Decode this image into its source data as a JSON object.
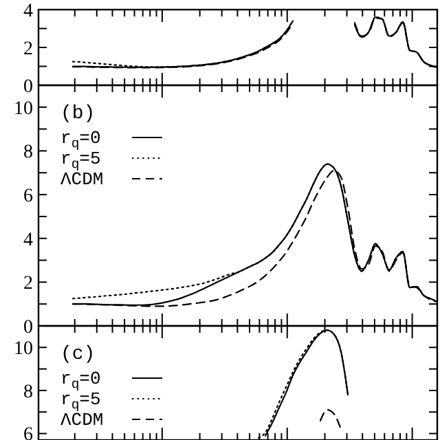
{
  "chart_data": [
    {
      "type": "line",
      "categories": [
        null,
        null,
        null,
        null,
        null,
        null,
        null,
        null,
        null,
        null,
        null,
        null,
        null,
        null,
        null,
        null,
        null,
        null,
        null,
        null,
        null,
        null,
        null,
        null,
        null,
        null,
        null,
        null,
        null,
        null,
        null,
        null,
        null,
        null,
        null,
        null,
        null,
        null,
        null,
        null,
        null,
        null,
        null,
        null,
        null,
        null,
        null,
        null,
        null,
        null,
        null,
        null,
        null,
        null,
        null,
        null,
        null,
        null,
        null
      ],
      "series": [
        {
          "color": "#000000",
          "line_style": "solid",
          "values": [
            null,
            null,
            null,
            null,
            null,
            1.0,
            1.0,
            0.99,
            0.98,
            0.97,
            0.97,
            0.96,
            0.96,
            0.95,
            0.95,
            0.95,
            0.95,
            0.96,
            0.96,
            0.97,
            0.98,
            1.0,
            1.02,
            1.05,
            1.08,
            1.12,
            1.17,
            1.24,
            1.32,
            1.42,
            1.53,
            1.65,
            1.8,
            2.0,
            2.2,
            2.45,
            2.85,
            3.4,
            null,
            null,
            null,
            null,
            null,
            null,
            null,
            null,
            null,
            null,
            null,
            null,
            null,
            null,
            null,
            null,
            null,
            null,
            null,
            null,
            null
          ]
        },
        {
          "color": "#000000",
          "line_style": "dotted",
          "values": [
            null,
            null,
            null,
            null,
            null,
            1.25,
            1.23,
            1.2,
            1.17,
            1.14,
            1.11,
            1.08,
            1.05,
            1.02,
            1.0,
            0.98,
            0.97,
            0.96,
            0.96,
            0.97,
            0.98,
            1.0,
            1.02,
            1.05,
            1.08,
            1.12,
            1.17,
            1.24,
            1.32,
            1.42,
            1.53,
            1.65,
            1.8,
            2.0,
            2.2,
            2.45,
            2.85,
            3.4,
            null,
            null,
            null,
            null,
            null,
            null,
            null,
            null,
            null,
            null,
            null,
            null,
            null,
            null,
            null,
            null,
            null,
            null,
            null,
            null,
            null
          ]
        },
        {
          "color": "#000000",
          "line_style": "dashed",
          "values": [
            null,
            null,
            null,
            null,
            null,
            0.98,
            0.98,
            0.97,
            0.96,
            0.95,
            0.95,
            0.94,
            0.94,
            0.93,
            0.93,
            0.93,
            0.93,
            0.93,
            0.94,
            0.95,
            0.96,
            0.97,
            0.99,
            1.02,
            1.05,
            1.09,
            1.14,
            1.2,
            1.28,
            1.37,
            1.48,
            1.6,
            1.74,
            1.92,
            2.12,
            2.37,
            2.75,
            3.3,
            null,
            null,
            null,
            null,
            null,
            null,
            null,
            null,
            null,
            null,
            null,
            null,
            null,
            null,
            null,
            null,
            null,
            null,
            null,
            null,
            null
          ]
        },
        {
          "color": "#000000",
          "line_style": "solid",
          "values": [
            null,
            null,
            null,
            null,
            null,
            null,
            null,
            null,
            null,
            null,
            null,
            null,
            null,
            null,
            null,
            null,
            null,
            null,
            null,
            null,
            null,
            null,
            null,
            null,
            null,
            null,
            null,
            null,
            null,
            null,
            null,
            null,
            null,
            null,
            null,
            null,
            null,
            null,
            null,
            null,
            null,
            null,
            null,
            null,
            null,
            null,
            3.2,
            2.55,
            2.8,
            3.6,
            3.5,
            2.6,
            2.8,
            3.35,
            1.85,
            1.75,
            1.25,
            1.05,
            0.95
          ]
        },
        {
          "color": "#000000",
          "line_style": "dotted",
          "values": [
            null,
            null,
            null,
            null,
            null,
            null,
            null,
            null,
            null,
            null,
            null,
            null,
            null,
            null,
            null,
            null,
            null,
            null,
            null,
            null,
            null,
            null,
            null,
            null,
            null,
            null,
            null,
            null,
            null,
            null,
            null,
            null,
            null,
            null,
            null,
            null,
            null,
            null,
            null,
            null,
            null,
            null,
            null,
            null,
            null,
            null,
            3.2,
            2.55,
            2.8,
            3.6,
            3.5,
            2.6,
            2.8,
            3.35,
            1.85,
            1.75,
            1.25,
            1.05,
            0.95
          ]
        },
        {
          "color": "#000000",
          "line_style": "dashed",
          "values": [
            null,
            null,
            null,
            null,
            null,
            null,
            null,
            null,
            null,
            null,
            null,
            null,
            null,
            null,
            null,
            null,
            null,
            null,
            null,
            null,
            null,
            null,
            null,
            null,
            null,
            null,
            null,
            null,
            null,
            null,
            null,
            null,
            null,
            null,
            null,
            null,
            null,
            null,
            null,
            null,
            null,
            null,
            null,
            null,
            null,
            null,
            3.3,
            2.6,
            2.75,
            3.55,
            3.5,
            2.55,
            2.8,
            3.3,
            1.85,
            1.75,
            1.25,
            1.05,
            0.95
          ]
        }
      ],
      "ylim": [
        0,
        4
      ],
      "yticks": [
        0,
        {
          "value": 1,
          "label": null
        },
        2,
        {
          "value": 3,
          "label": null
        },
        4
      ],
      "tick_labels": "y"
    },
    {
      "type": "line",
      "categories": [
        null,
        null,
        null,
        null,
        null,
        null,
        null,
        null,
        null,
        null,
        null,
        null,
        null,
        null,
        null,
        null,
        null,
        null,
        null,
        null,
        null,
        null,
        null,
        null,
        null,
        null,
        null,
        null,
        null,
        null,
        null,
        null,
        null,
        null,
        null,
        null,
        null,
        null,
        null,
        null,
        null,
        null,
        null,
        null,
        null,
        null,
        null,
        null,
        null,
        null,
        null,
        null,
        null,
        null,
        null,
        null,
        null,
        null,
        null
      ],
      "series": [
        {
          "name": "r$_{q}$=0",
          "color": "#000000",
          "line_style": "solid",
          "values": [
            null,
            null,
            null,
            null,
            null,
            1.0,
            1.0,
            1.0,
            0.99,
            0.98,
            0.97,
            0.96,
            0.96,
            0.95,
            0.95,
            0.95,
            0.96,
            1.0,
            1.05,
            1.12,
            1.2,
            1.3,
            1.42,
            1.55,
            1.7,
            1.85,
            2.0,
            2.15,
            2.3,
            2.45,
            2.6,
            2.75,
            2.9,
            3.1,
            3.35,
            3.7,
            4.1,
            4.6,
            5.2,
            5.8,
            6.5,
            7.1,
            7.4,
            7.2,
            6.4,
            4.8,
            3.2,
            2.5,
            3.0,
            3.75,
            3.3,
            2.55,
            3.1,
            3.4,
            1.75,
            1.8,
            1.4,
            1.25,
            1.1
          ]
        },
        {
          "name": "r$_{q}$=5",
          "color": "#000000",
          "line_style": "dotted",
          "values": [
            null,
            null,
            null,
            null,
            null,
            1.25,
            1.27,
            1.3,
            1.32,
            1.35,
            1.38,
            1.4,
            1.43,
            1.46,
            1.5,
            1.53,
            1.57,
            1.6,
            1.64,
            1.68,
            1.72,
            1.77,
            1.82,
            1.88,
            1.95,
            2.05,
            2.15,
            2.27,
            2.38,
            2.45,
            2.6,
            2.75,
            2.9,
            3.1,
            3.35,
            3.7,
            4.1,
            4.6,
            5.2,
            5.8,
            6.5,
            7.1,
            7.4,
            7.2,
            6.4,
            4.8,
            3.2,
            2.5,
            3.0,
            3.75,
            3.3,
            2.55,
            3.1,
            3.4,
            1.75,
            1.8,
            1.4,
            1.25,
            1.1
          ]
        },
        {
          "name": "ΛCDM",
          "color": "#000000",
          "line_style": "dashed",
          "values": [
            null,
            null,
            null,
            null,
            null,
            1.0,
            1.0,
            0.99,
            0.98,
            0.97,
            0.96,
            0.95,
            0.94,
            0.93,
            0.92,
            0.91,
            0.9,
            0.9,
            0.9,
            0.91,
            0.93,
            0.96,
            1.0,
            1.04,
            1.08,
            1.13,
            1.2,
            1.3,
            1.42,
            1.55,
            1.7,
            1.85,
            2.05,
            2.3,
            2.6,
            2.95,
            3.35,
            3.85,
            4.4,
            5.0,
            5.7,
            6.3,
            6.8,
            7.1,
            6.8,
            5.4,
            3.5,
            2.6,
            2.8,
            3.65,
            3.4,
            2.5,
            3.0,
            3.35,
            1.8,
            1.75,
            1.4,
            1.2,
            1.1
          ]
        }
      ],
      "ylim": [
        0,
        11
      ],
      "yticks": [
        0,
        {
          "value": 1,
          "label": null
        },
        2,
        {
          "value": 3,
          "label": null
        },
        4,
        {
          "value": 5,
          "label": null
        },
        6,
        {
          "value": 7,
          "label": null
        },
        8,
        {
          "value": 9,
          "label": null
        },
        10
      ],
      "tick_labels": "y",
      "legend": "top left",
      "annotations": [
        "(b)"
      ]
    },
    {
      "type": "line",
      "categories": [
        null,
        null,
        null,
        null,
        null,
        null,
        null,
        null,
        null,
        null,
        null,
        null,
        null,
        null,
        null,
        null,
        null,
        null,
        null,
        null,
        null,
        null,
        null,
        null,
        null,
        null,
        null,
        null,
        null,
        null,
        null,
        null,
        null,
        null,
        null,
        null,
        null,
        null,
        null,
        null,
        null,
        null,
        null,
        null,
        null,
        null,
        null,
        null,
        null,
        null,
        null,
        null,
        null,
        null,
        null,
        null,
        null,
        null,
        null
      ],
      "series": [
        {
          "name": "r$_{q}$=0",
          "color": "#000000",
          "line_style": "solid",
          "values": [
            null,
            null,
            null,
            null,
            null,
            null,
            null,
            null,
            null,
            null,
            null,
            null,
            null,
            null,
            null,
            null,
            null,
            null,
            null,
            null,
            null,
            null,
            null,
            null,
            null,
            null,
            null,
            null,
            null,
            null,
            null,
            null,
            null,
            5.9,
            6.5,
            7.2,
            7.9,
            8.7,
            9.3,
            9.8,
            10.3,
            10.65,
            10.8,
            10.6,
            9.8,
            7.8,
            null,
            null,
            null,
            null,
            null,
            null,
            null,
            null,
            null,
            null,
            null,
            null,
            null
          ]
        },
        {
          "name": "r$_{q}$=5",
          "color": "#000000",
          "line_style": "dotted",
          "values": [
            null,
            null,
            null,
            null,
            null,
            null,
            null,
            null,
            null,
            null,
            null,
            null,
            null,
            null,
            null,
            null,
            null,
            null,
            null,
            null,
            null,
            null,
            null,
            null,
            null,
            null,
            null,
            null,
            null,
            null,
            null,
            null,
            5.8,
            6.05,
            6.7,
            7.45,
            8.15,
            8.85,
            9.45,
            9.95,
            10.4,
            10.7,
            10.8,
            10.6,
            9.8,
            7.8,
            null,
            null,
            null,
            null,
            null,
            null,
            null,
            null,
            null,
            null,
            null,
            null,
            null
          ]
        },
        {
          "name": "ΛCDM",
          "color": "#000000",
          "line_style": "dashed",
          "values": [
            null,
            null,
            null,
            null,
            null,
            null,
            null,
            null,
            null,
            null,
            null,
            null,
            null,
            null,
            null,
            null,
            null,
            null,
            null,
            null,
            null,
            null,
            null,
            null,
            null,
            null,
            null,
            null,
            null,
            null,
            null,
            null,
            null,
            null,
            null,
            null,
            null,
            null,
            null,
            null,
            null,
            6.6,
            7.1,
            6.9,
            6.2,
            null,
            null,
            null,
            null,
            null,
            null,
            null,
            null,
            null,
            null,
            null,
            null,
            null,
            null
          ]
        }
      ],
      "ylim": [
        5.7,
        11
      ],
      "yticks": [
        6,
        {
          "value": 7,
          "label": null
        },
        8,
        {
          "value": 9,
          "label": null
        },
        10
      ],
      "tick_labels": "y",
      "legend": "left",
      "annotations": [
        "(c)"
      ]
    }
  ]
}
